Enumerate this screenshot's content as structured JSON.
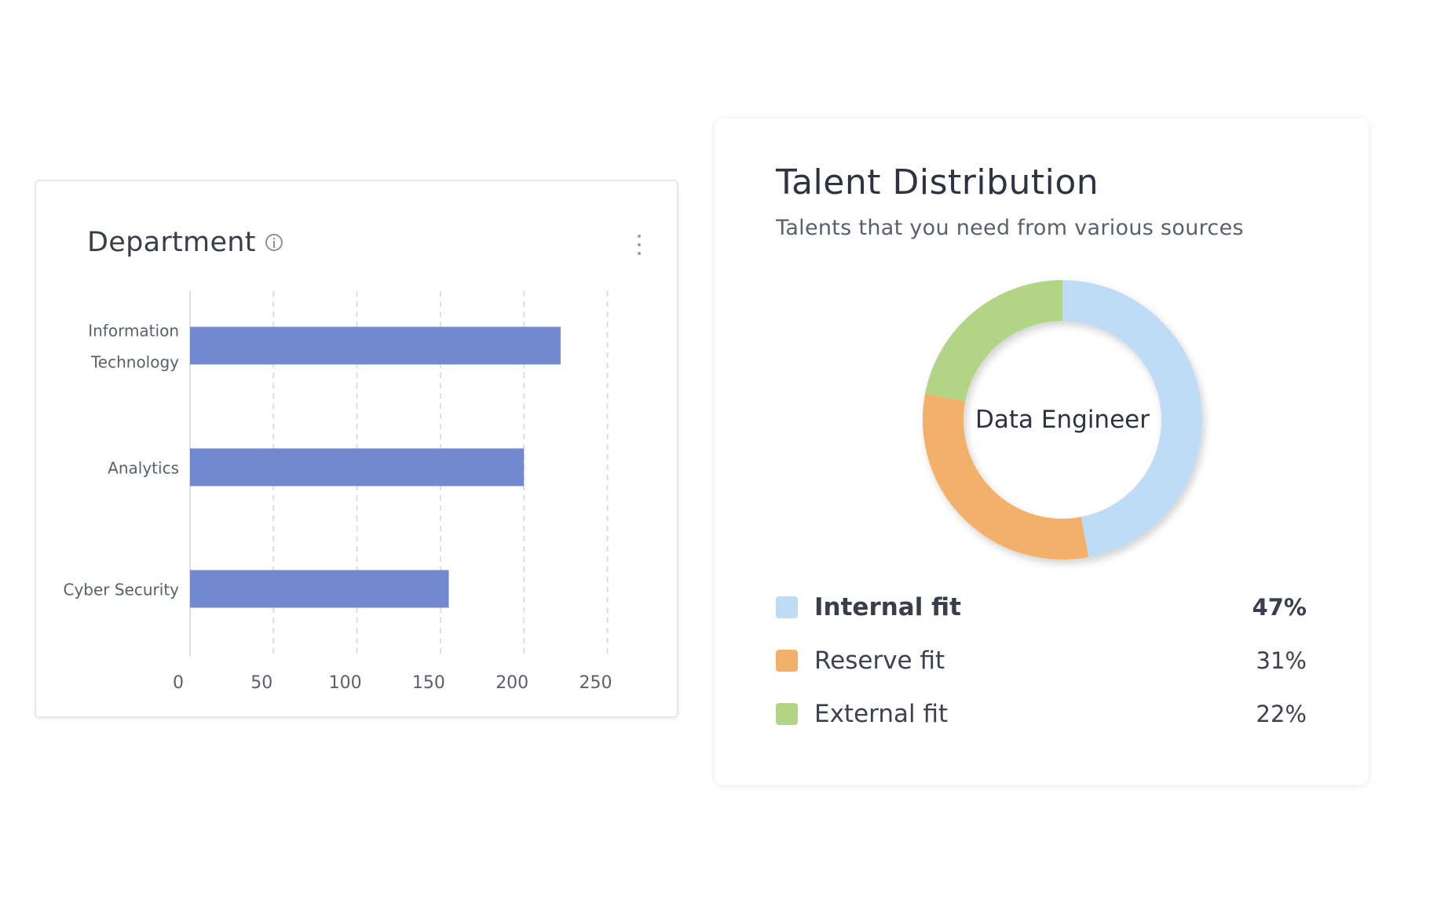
{
  "department_card": {
    "title": "Department",
    "icons": {
      "info": "info-circle-icon",
      "menu": "more-vertical-icon"
    }
  },
  "talent_card": {
    "title": "Talent Distribution",
    "subtitle": "Talents that you need from various sources",
    "center_label": "Data Engineer",
    "legend": [
      {
        "label": "Internal fit",
        "value": "47%",
        "color": "#bfdcf6",
        "emphasized": true
      },
      {
        "label": "Reserve fit",
        "value": "31%",
        "color": "#f3b06a",
        "emphasized": false
      },
      {
        "label": "External fit",
        "value": "22%",
        "color": "#b2d585",
        "emphasized": false
      }
    ]
  },
  "chart_data": [
    {
      "type": "bar",
      "orientation": "horizontal",
      "categories": [
        "Information Technology",
        "Analytics",
        "Cyber Security"
      ],
      "category_lines": [
        [
          "Information",
          "Technology"
        ],
        [
          "Analytics"
        ],
        [
          "Cyber Security"
        ]
      ],
      "values": [
        222,
        200,
        155
      ],
      "xlim": [
        0,
        262
      ],
      "xticks": [
        0,
        50,
        100,
        150,
        200,
        250
      ],
      "xlabel": "",
      "ylabel": "",
      "grid": "vertical dashed",
      "bar_color": "#7289cf"
    },
    {
      "type": "pie",
      "variant": "donut",
      "categories": [
        "Internal fit",
        "Reserve fit",
        "External fit"
      ],
      "values": [
        47,
        31,
        22
      ],
      "colors": [
        "#bfdcf6",
        "#f3b06a",
        "#b2d585"
      ],
      "center_label": "Data Engineer"
    }
  ]
}
